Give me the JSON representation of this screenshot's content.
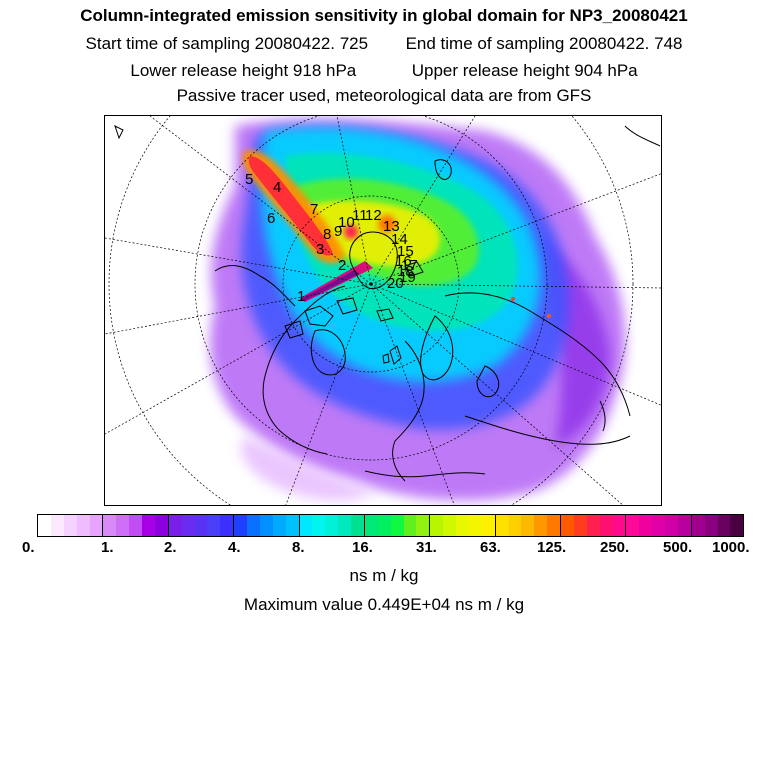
{
  "header": {
    "title": "Column-integrated emission sensitivity in global domain for NP3_20080421",
    "start_label": "Start time of sampling 20080422.   725",
    "end_label": "End time of sampling 20080422.   748",
    "lower_label": "Lower release height  918 hPa",
    "upper_label": "Upper release height  904 hPa",
    "note": "Passive tracer used, meteorological data are from GFS"
  },
  "map": {
    "projection": "north-polar-stereographic",
    "trajectory_labels": [
      "1",
      "2",
      "3",
      "4",
      "5",
      "6",
      "7",
      "8",
      "9",
      "10",
      "11",
      "12",
      "13",
      "14",
      "15",
      "16",
      "17",
      "18",
      "19",
      "20"
    ]
  },
  "colorbar": {
    "colors": [
      "#ffffff",
      "#fbe8ff",
      "#f5d2ff",
      "#efbdff",
      "#e6a3ff",
      "#d98af8",
      "#cf6ef8",
      "#c24df5",
      "#a800e6",
      "#8c00e0",
      "#7a1fe8",
      "#6a2cf0",
      "#5a32f5",
      "#4a3ff8",
      "#3a30ff",
      "#2040ff",
      "#0a70ff",
      "#0090ff",
      "#00aaff",
      "#00c0ff",
      "#00e8ff",
      "#00f5f0",
      "#00f0d8",
      "#00e8c0",
      "#00e090",
      "#00e878",
      "#00f060",
      "#10f840",
      "#60f020",
      "#90f010",
      "#b8f500",
      "#d0f800",
      "#e8f800",
      "#f5f500",
      "#fff000",
      "#ffe000",
      "#ffd000",
      "#ffb800",
      "#ff9800",
      "#ff7800",
      "#ff5a00",
      "#ff3c1e",
      "#ff2050",
      "#ff1070",
      "#ff0a8a",
      "#ff0a98",
      "#f000a0",
      "#e000a8",
      "#d000a8",
      "#b800a0",
      "#a00090",
      "#8a0080",
      "#6a0060",
      "#4a0040"
    ],
    "ticks": [
      "0.",
      "1.",
      "2.",
      "4.",
      "8.",
      "16.",
      "31.",
      "63.",
      "125.",
      "250.",
      "500.",
      "1000."
    ],
    "unit": "ns m / kg"
  },
  "max_value_label": "Maximum value  0.449E+04 ns m / kg"
}
